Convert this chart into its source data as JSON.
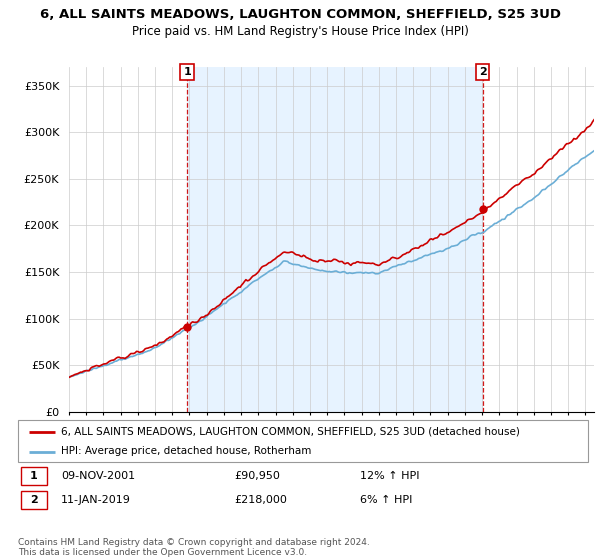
{
  "title": "6, ALL SAINTS MEADOWS, LAUGHTON COMMON, SHEFFIELD, S25 3UD",
  "subtitle": "Price paid vs. HM Land Registry's House Price Index (HPI)",
  "legend_line1": "6, ALL SAINTS MEADOWS, LAUGHTON COMMON, SHEFFIELD, S25 3UD (detached house)",
  "legend_line2": "HPI: Average price, detached house, Rotherham",
  "annotation1_date": "09-NOV-2001",
  "annotation1_price": "£90,950",
  "annotation1_hpi": "12% ↑ HPI",
  "annotation2_date": "11-JAN-2019",
  "annotation2_price": "£218,000",
  "annotation2_hpi": "6% ↑ HPI",
  "footnote1": "Contains HM Land Registry data © Crown copyright and database right 2024.",
  "footnote2": "This data is licensed under the Open Government Licence v3.0.",
  "sale1_year": 2001.86,
  "sale1_value": 90950,
  "sale2_year": 2019.03,
  "sale2_value": 218000,
  "hpi_color": "#6baed6",
  "price_color": "#cc0000",
  "shade_color": "#ddeeff",
  "vline_color": "#cc0000",
  "background_color": "#ffffff",
  "ylim_min": 0,
  "ylim_max": 370000,
  "xlim_min": 1995.0,
  "xlim_max": 2025.5
}
